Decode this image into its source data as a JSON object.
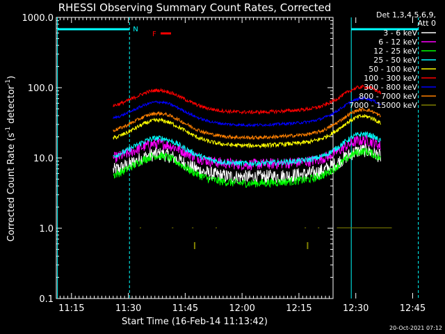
{
  "chart_data": {
    "type": "line",
    "title": "RHESSI Observing Summary Count Rates, Corrected",
    "xlabel": "Start Time (16-Feb-14 11:13:42)",
    "ylabel_main": "Corrected Count Rate (s",
    "ylabel_sup1": "-1",
    "ylabel_mid": " detector",
    "ylabel_sup2": "-1",
    "ylabel_end": ")",
    "y_scale": "log",
    "ylim": [
      0.1,
      1000
    ],
    "y_ticks": [
      {
        "value": 0.1,
        "label": "0.1"
      },
      {
        "value": 1,
        "label": "1.0"
      },
      {
        "value": 10,
        "label": "10.0"
      },
      {
        "value": 100,
        "label": "100.0"
      },
      {
        "value": 1000,
        "label": "1000.0"
      }
    ],
    "xlim_minutes_after_11_00": [
      11,
      84
    ],
    "x_ticks": [
      {
        "value": 15,
        "label": "11:15"
      },
      {
        "value": 30,
        "label": "11:30"
      },
      {
        "value": 45,
        "label": "11:45"
      },
      {
        "value": 60,
        "label": "12:00"
      },
      {
        "value": 75,
        "label": "12:15"
      },
      {
        "value": 90,
        "label": "12:30"
      },
      {
        "value": 105,
        "label": "12:45"
      }
    ],
    "legend_header": [
      "Det 1,3,4,5,6,9,",
      "Att 0"
    ],
    "legend_position": "outside-right",
    "series": [
      {
        "name": "3 - 6 keV",
        "color": "#ffffff"
      },
      {
        "name": "6 - 12 keV",
        "color": "#ff00ff"
      },
      {
        "name": "12 - 25 keV",
        "color": "#00ff00"
      },
      {
        "name": "25 - 50 keV",
        "color": "#00ffff"
      },
      {
        "name": "50 - 100 keV",
        "color": "#ffff00"
      },
      {
        "name": "100 - 300 keV",
        "color": "#ff0000"
      },
      {
        "name": "300 - 800 keV",
        "color": "#0000ff"
      },
      {
        "name": "800 - 7000 keV",
        "color": "#ff8000"
      },
      {
        "name": "7000 - 15000 keV",
        "color": "#808000"
      }
    ],
    "annotations": [
      {
        "label": "N",
        "color": "#00ffff"
      },
      {
        "label": "F",
        "color": "#ff0000"
      }
    ],
    "timestamp": "20-Oct-2021 07:12"
  }
}
